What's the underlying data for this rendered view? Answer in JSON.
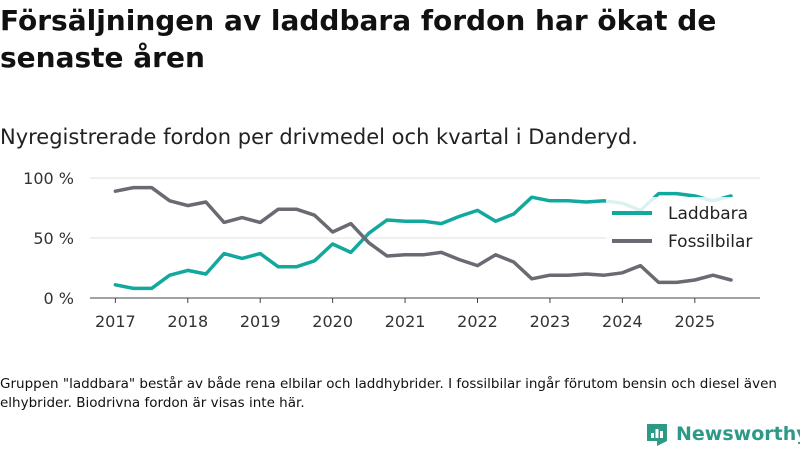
{
  "title": "Försäljningen av laddbara fordon har ökat de senaste åren",
  "subtitle": "Nyregistrerade fordon per drivmedel och kvartal i Danderyd.",
  "footnote": "Gruppen \"laddbara\" består av både rena elbilar och laddhybrider. I fossilbilar ingår förutom bensin och diesel även elhybrider. Biodrivna fordon är visas inte här.",
  "brand": {
    "name": "Newsworthy",
    "color": "#2d9a86"
  },
  "chart_data": {
    "type": "line",
    "x": [
      2017.0,
      2017.25,
      2017.5,
      2017.75,
      2018.0,
      2018.25,
      2018.5,
      2018.75,
      2019.0,
      2019.25,
      2019.5,
      2019.75,
      2020.0,
      2020.25,
      2020.5,
      2020.75,
      2021.0,
      2021.25,
      2021.5,
      2021.75,
      2022.0,
      2022.25,
      2022.5,
      2022.75,
      2023.0,
      2023.25,
      2023.5,
      2023.75,
      2024.0,
      2024.25,
      2024.5,
      2024.75,
      2025.0,
      2025.25,
      2025.5
    ],
    "series": [
      {
        "name": "Laddbara",
        "color": "#13a89e",
        "values": [
          11,
          8,
          8,
          19,
          23,
          20,
          37,
          33,
          37,
          26,
          26,
          31,
          45,
          38,
          54,
          65,
          64,
          64,
          62,
          68,
          73,
          64,
          70,
          84,
          81,
          81,
          80,
          81,
          79,
          73,
          87,
          87,
          85,
          81,
          85
        ]
      },
      {
        "name": "Fossilbilar",
        "color": "#6a6a72",
        "values": [
          89,
          92,
          92,
          81,
          77,
          80,
          63,
          67,
          63,
          74,
          74,
          69,
          55,
          62,
          46,
          35,
          36,
          36,
          38,
          32,
          27,
          36,
          30,
          16,
          19,
          19,
          20,
          19,
          21,
          27,
          13,
          13,
          15,
          19,
          15
        ]
      }
    ],
    "ylim": [
      0,
      100
    ],
    "yticks": [
      0,
      50,
      100
    ],
    "ytick_labels": [
      "0 %",
      "50 %",
      "100 %"
    ],
    "xlim": [
      2016.65,
      2025.9
    ],
    "xticks": [
      2017,
      2018,
      2019,
      2020,
      2021,
      2022,
      2023,
      2024,
      2025
    ],
    "xtick_labels": [
      "2017",
      "2018",
      "2019",
      "2020",
      "2021",
      "2022",
      "2023",
      "2024",
      "2025"
    ],
    "legend_position": "right",
    "grid": true
  }
}
